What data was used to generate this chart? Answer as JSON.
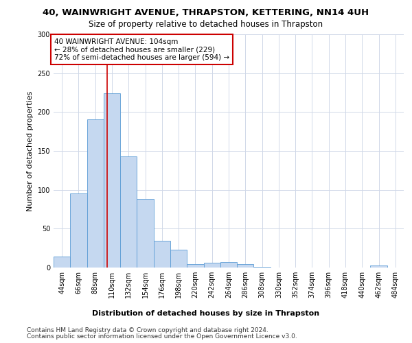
{
  "title": "40, WAINWRIGHT AVENUE, THRAPSTON, KETTERING, NN14 4UH",
  "subtitle": "Size of property relative to detached houses in Thrapston",
  "xlabel": "Distribution of detached houses by size in Thrapston",
  "ylabel": "Number of detached properties",
  "footer_line1": "Contains HM Land Registry data © Crown copyright and database right 2024.",
  "footer_line2": "Contains public sector information licensed under the Open Government Licence v3.0.",
  "bin_labels": [
    "44sqm",
    "66sqm",
    "88sqm",
    "110sqm",
    "132sqm",
    "154sqm",
    "176sqm",
    "198sqm",
    "220sqm",
    "242sqm",
    "264sqm",
    "286sqm",
    "308sqm",
    "330sqm",
    "352sqm",
    "374sqm",
    "396sqm",
    "418sqm",
    "440sqm",
    "462sqm",
    "484sqm"
  ],
  "bar_values": [
    14,
    95,
    191,
    224,
    143,
    88,
    34,
    23,
    4,
    6,
    7,
    4,
    1,
    0,
    0,
    0,
    0,
    0,
    0,
    3,
    0
  ],
  "bar_color": "#c5d8f0",
  "bar_edge_color": "#5b9bd5",
  "property_line_x": 104,
  "property_line_color": "#cc0000",
  "annotation_text": "40 WAINWRIGHT AVENUE: 104sqm\n← 28% of detached houses are smaller (229)\n72% of semi-detached houses are larger (594) →",
  "annotation_box_color": "#ffffff",
  "annotation_box_edge": "#cc0000",
  "ylim": [
    0,
    300
  ],
  "yticks": [
    0,
    50,
    100,
    150,
    200,
    250,
    300
  ],
  "title_fontsize": 9.5,
  "subtitle_fontsize": 8.5,
  "ylabel_fontsize": 8,
  "xlabel_fontsize": 8,
  "tick_fontsize": 7,
  "footer_fontsize": 6.5,
  "annotation_fontsize": 7.5,
  "background_color": "#ffffff",
  "grid_color": "#d0d8e8"
}
